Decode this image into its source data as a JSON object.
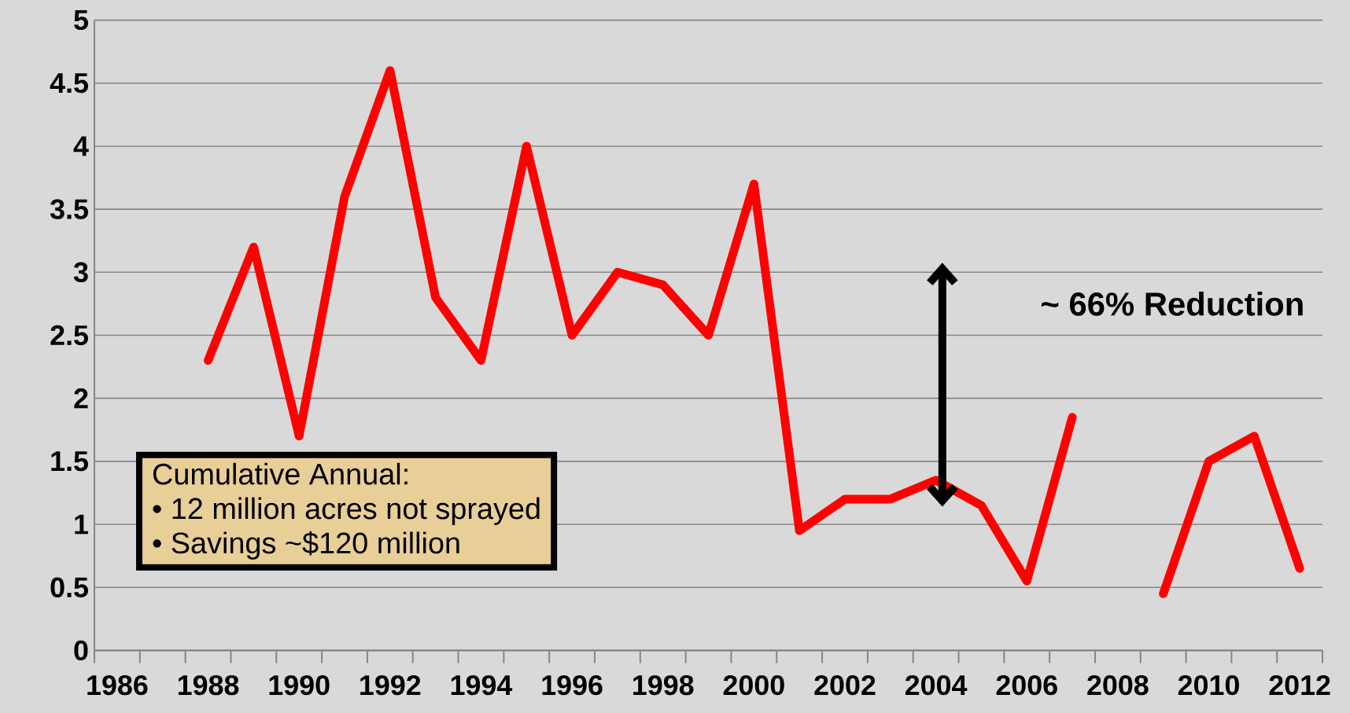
{
  "chart_data": {
    "type": "line",
    "categories": [
      "1986",
      null,
      "1988",
      null,
      "1990",
      null,
      "1992",
      null,
      "1994",
      null,
      "1996",
      null,
      "1998",
      null,
      "2000",
      null,
      "2002",
      null,
      "2004",
      null,
      "2006",
      null,
      "2008",
      null,
      "2010",
      null,
      "2012"
    ],
    "series": [
      {
        "color": "#ff0000",
        "values": [
          null,
          null,
          2.3,
          3.2,
          1.7,
          3.6,
          4.6,
          2.8,
          2.3,
          4.0,
          2.5,
          3.0,
          2.9,
          2.5,
          3.7,
          0.95,
          1.2,
          1.2,
          1.35,
          1.15,
          0.55,
          1.85,
          null,
          0.45,
          1.5,
          1.7,
          0.65
        ]
      }
    ],
    "ylim": [
      0,
      5
    ],
    "yticks": [
      0,
      0.5,
      1,
      1.5,
      2,
      2.5,
      3,
      3.5,
      4,
      4.5,
      5
    ],
    "grid": "y",
    "marker": "none",
    "line_style": "solid",
    "annotations": [
      "~ 66% Reduction",
      "Cumulative Annual:",
      "• 12 million acres not sprayed",
      "• Savings ~$120 million"
    ]
  }
}
